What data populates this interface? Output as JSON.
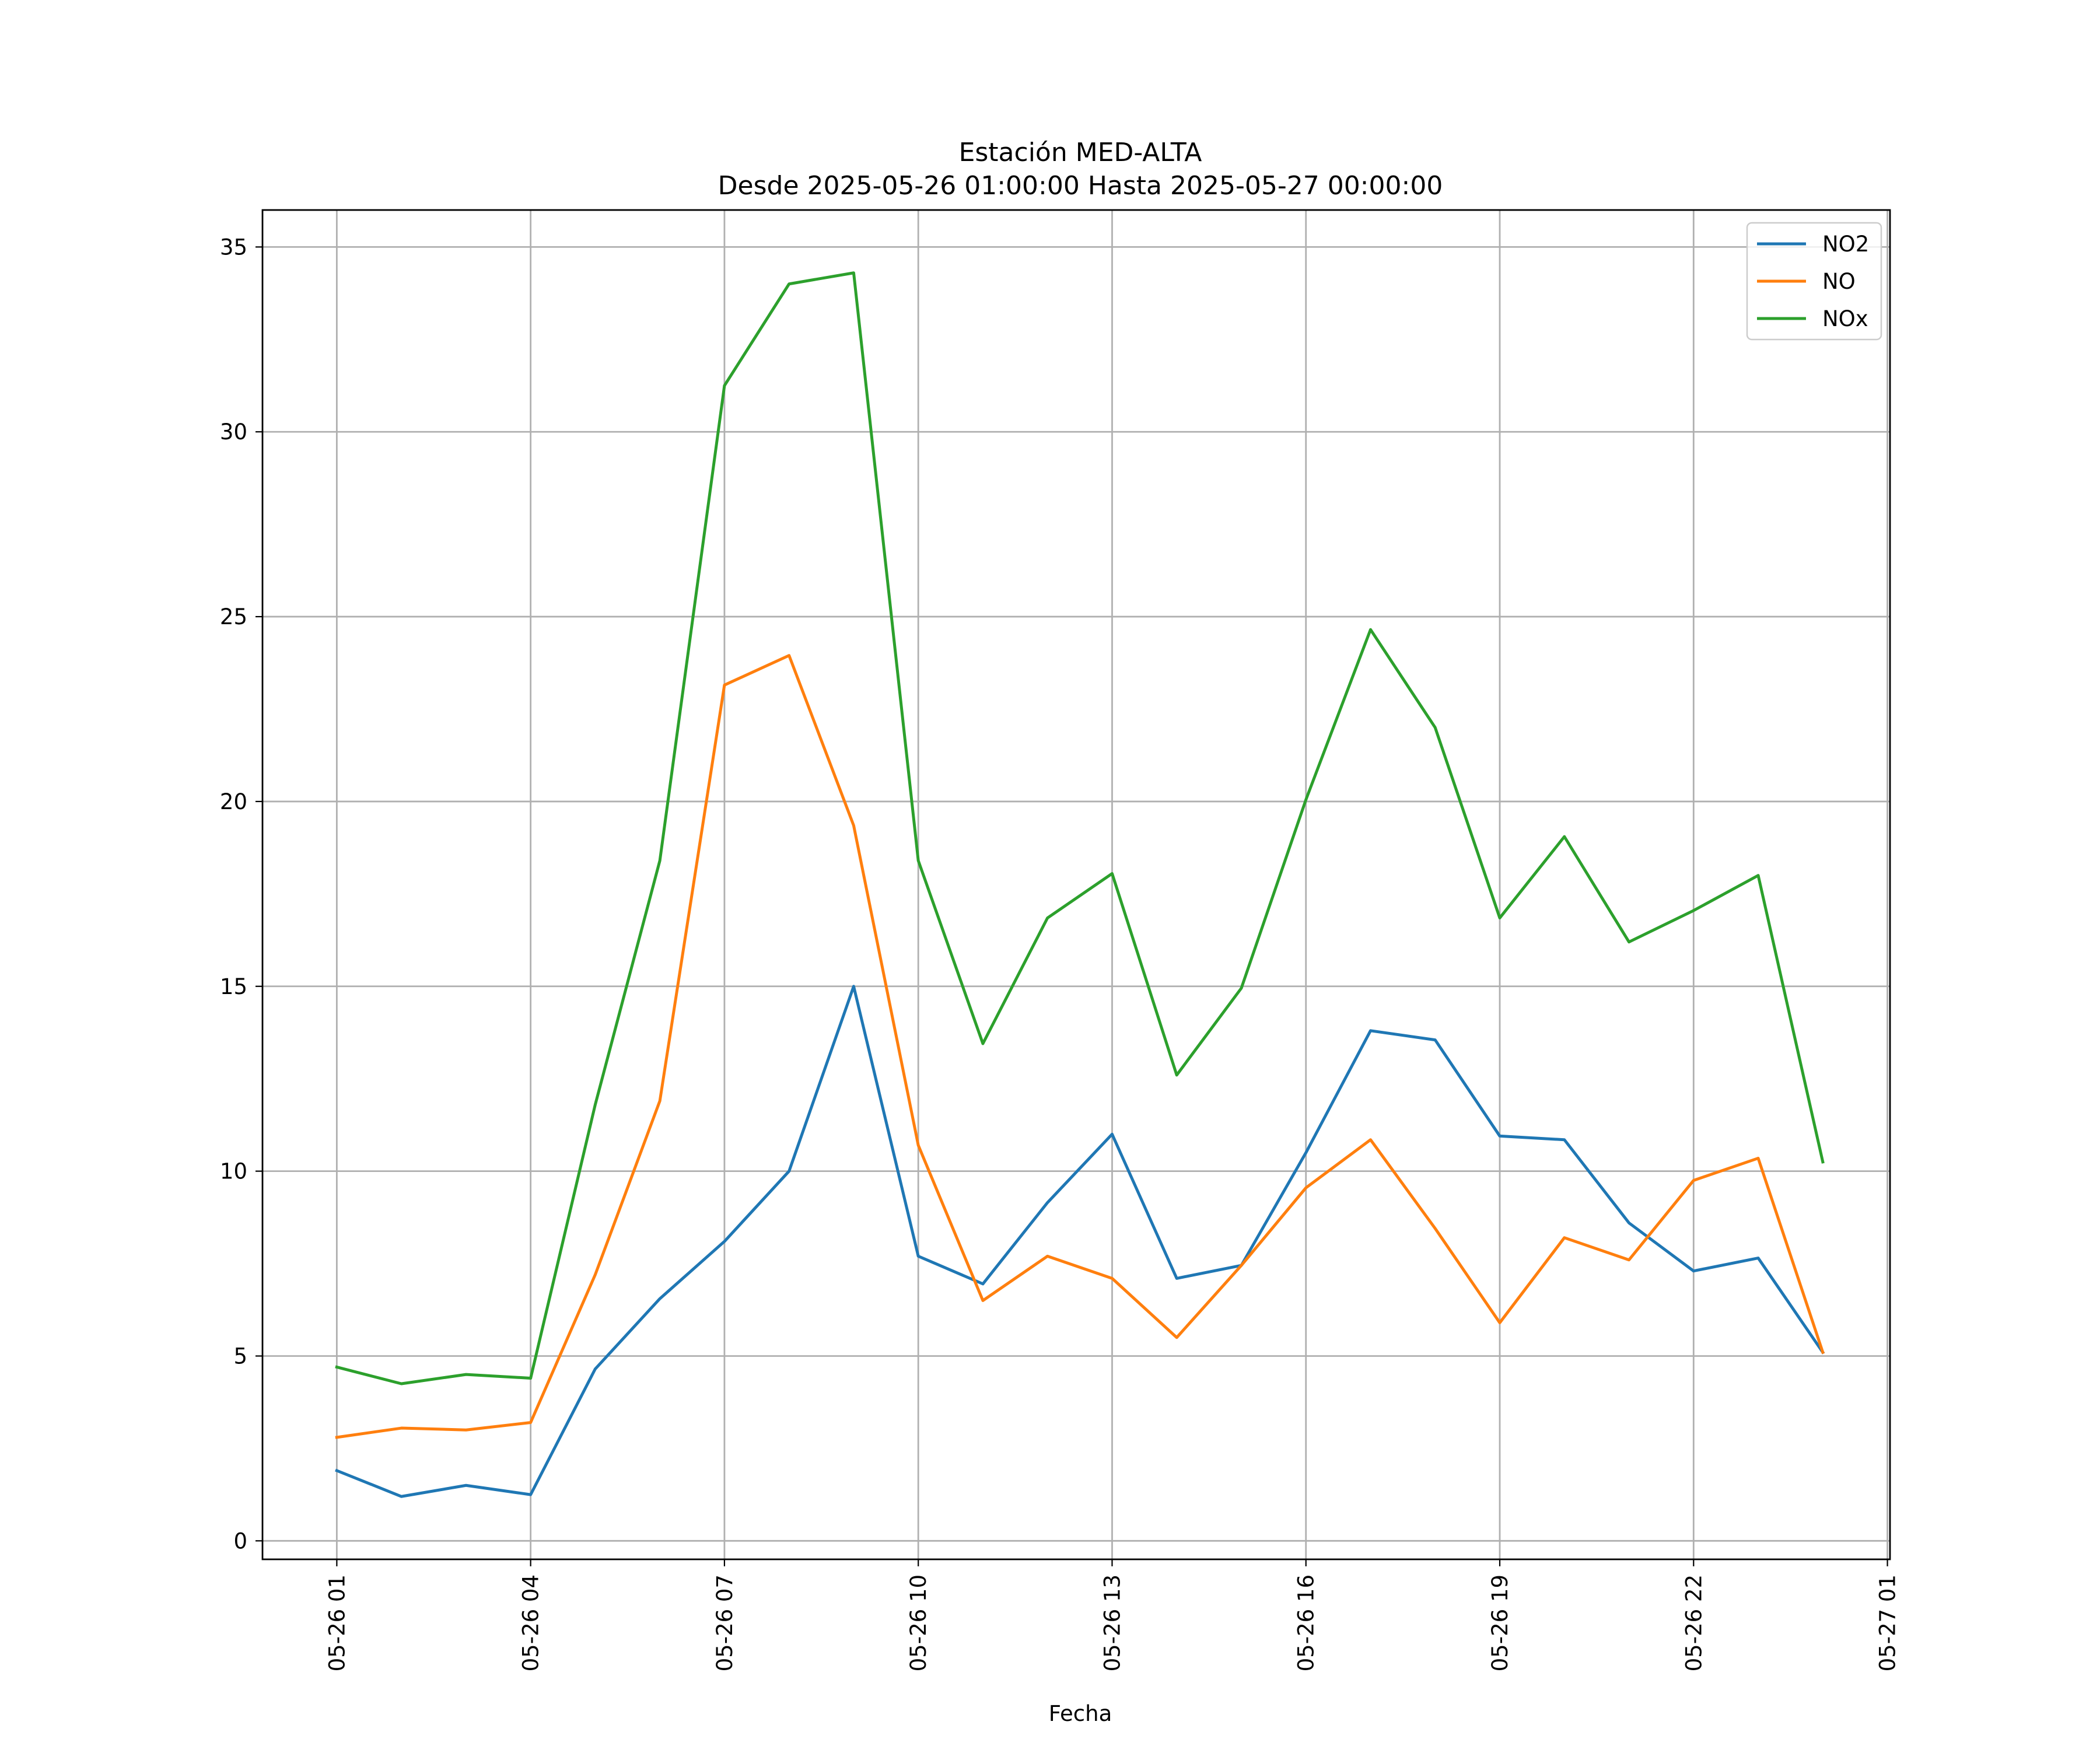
{
  "chart_data": {
    "type": "line",
    "title": "Estación MED-ALTA",
    "subtitle": "Desde 2025-05-26 01:00:00 Hasta 2025-05-27 00:00:00",
    "xlabel": "Fecha",
    "ylabel": "",
    "x": [
      "2025-05-26 01:00",
      "2025-05-26 02:00",
      "2025-05-26 03:00",
      "2025-05-26 04:00",
      "2025-05-26 05:00",
      "2025-05-26 06:00",
      "2025-05-26 07:00",
      "2025-05-26 08:00",
      "2025-05-26 09:00",
      "2025-05-26 10:00",
      "2025-05-26 11:00",
      "2025-05-26 12:00",
      "2025-05-26 13:00",
      "2025-05-26 14:00",
      "2025-05-26 15:00",
      "2025-05-26 16:00",
      "2025-05-26 17:00",
      "2025-05-26 18:00",
      "2025-05-26 19:00",
      "2025-05-26 20:00",
      "2025-05-26 21:00",
      "2025-05-26 22:00",
      "2025-05-26 23:00",
      "2025-05-27 00:00"
    ],
    "series": [
      {
        "name": "NO2",
        "color": "#1f77b4",
        "values": [
          1.9,
          1.2,
          1.5,
          1.25,
          4.65,
          6.55,
          8.1,
          10.0,
          15.0,
          7.7,
          6.95,
          9.15,
          11.0,
          7.1,
          7.45,
          10.5,
          13.8,
          13.55,
          10.95,
          10.85,
          8.6,
          7.3,
          7.65,
          5.1
        ]
      },
      {
        "name": "NO",
        "color": "#ff7f0e",
        "values": [
          2.8,
          3.05,
          3.0,
          3.2,
          7.2,
          11.9,
          23.15,
          23.95,
          19.35,
          10.7,
          6.5,
          7.7,
          7.1,
          5.5,
          7.45,
          9.55,
          10.85,
          8.45,
          5.9,
          8.2,
          7.6,
          9.75,
          10.35,
          5.1
        ]
      },
      {
        "name": "NOx",
        "color": "#2ca02c",
        "values": [
          4.7,
          4.25,
          4.5,
          4.4,
          11.8,
          18.4,
          31.25,
          34.0,
          34.3,
          18.4,
          13.45,
          16.85,
          18.05,
          12.6,
          14.95,
          20.05,
          24.65,
          22.0,
          16.85,
          19.05,
          16.2,
          17.05,
          18.0,
          10.25
        ]
      }
    ],
    "xlim": [
      "2025-05-26 00:00",
      "2025-05-27 00:00"
    ],
    "ylim": [
      -0.5,
      36
    ],
    "yticks": [
      0,
      5,
      10,
      15,
      20,
      25,
      30,
      35
    ],
    "xtick_values": [
      "2025-05-26 01:00",
      "2025-05-26 04:00",
      "2025-05-26 07:00",
      "2025-05-26 10:00",
      "2025-05-26 13:00",
      "2025-05-26 16:00",
      "2025-05-26 19:00",
      "2025-05-26 22:00",
      "2025-05-27 01:00"
    ],
    "xtick_labels": [
      "05-26 01",
      "05-26 04",
      "05-26 07",
      "05-26 10",
      "05-26 13",
      "05-26 16",
      "05-26 19",
      "05-26 22",
      "05-27 01"
    ],
    "grid": true,
    "legend_position": "top-right"
  }
}
